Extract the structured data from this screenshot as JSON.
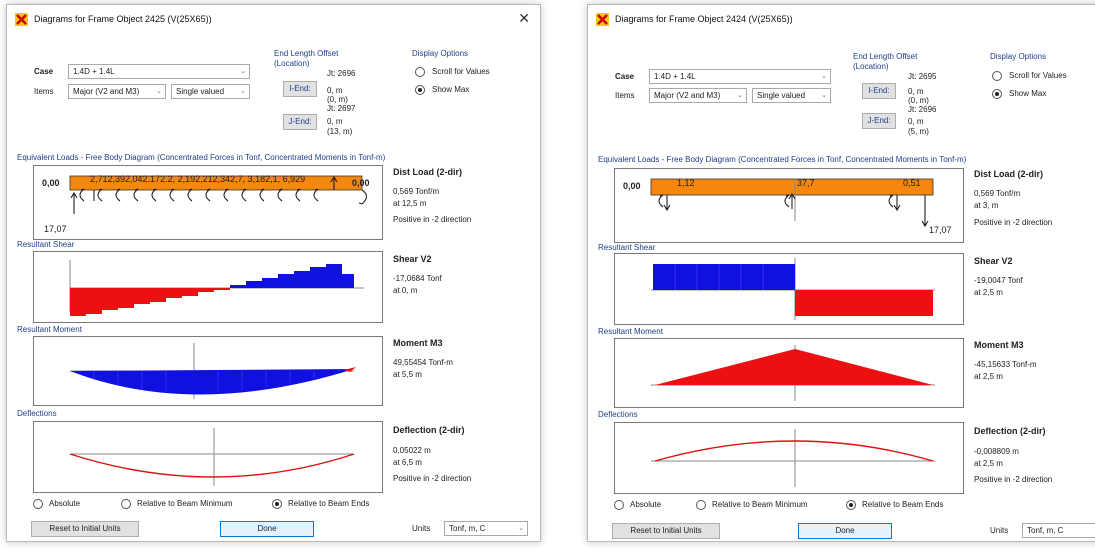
{
  "windows": [
    {
      "title": "Diagrams for Frame Object 2425  (V(25X65))",
      "case_label": "Case",
      "case_value": "1.4D + 1.4L",
      "items_label": "Items",
      "items_value": "Major (V2 and M3)",
      "valued_value": "Single valued",
      "end_length_offset_label": "End Length Offset",
      "location_label": "(Location)",
      "i_end_label": "I-End:",
      "j_end_label": "J-End:",
      "jt_i": "Jt: 2696",
      "i_off": "0, m",
      "i_loc": "(0, m)",
      "jt_j": "Jt: 2697",
      "j_off": "0, m",
      "j_loc": "(13, m)",
      "display_options_label": "Display Options",
      "scroll_label": "Scroll for Values",
      "show_max_label": "Show Max",
      "fbd_header": "Equivalent Loads - Free Body Diagram  (Concentrated Forces in Tonf, Concentrated Moments in Tonf-m)",
      "fbd_left_label": "0,00",
      "fbd_right_label": "0,00",
      "fbd_top_values": "2,712,392,042.172.2, 2,192,212,342,7, 3,182,1, 6,929",
      "fbd_reaction": "17,07",
      "dist_title": "Dist Load (2-dir)",
      "dist_value": "0,569 Tonf/m",
      "dist_at": "at 12,5 m",
      "dist_note": "Positive in -2 direction",
      "shear_section": "Resultant Shear",
      "shear_title": "Shear V2",
      "shear_value": "-17,0684 Tonf",
      "shear_at": "at 0, m",
      "moment_section": "Resultant Moment",
      "moment_title": "Moment M3",
      "moment_value": "49,55454 Tonf-m",
      "moment_at": "at 5,5 m",
      "defl_section": "Deflections",
      "defl_title": "Deflection (2-dir)",
      "defl_value": "0,05022 m",
      "defl_at": "at 6,5 m",
      "defl_note": "Positive in -2 direction",
      "absolute_label": "Absolute",
      "rel_min_label": "Relative to Beam Minimum",
      "rel_ends_label": "Relative to Beam Ends",
      "reset_label": "Reset to Initial Units",
      "done_label": "Done",
      "units_label": "Units",
      "units_value": "Tonf, m, C"
    },
    {
      "title": "Diagrams for Frame Object 2424  (V(25X65))",
      "case_label": "Case",
      "case_value": "1.4D + 1.4L",
      "items_label": "Items",
      "items_value": "Major (V2 and M3)",
      "valued_value": "Single valued",
      "end_length_offset_label": "End Length Offset",
      "location_label": "(Location)",
      "i_end_label": "I-End:",
      "j_end_label": "J-End:",
      "jt_i": "Jt: 2695",
      "i_off": "0, m",
      "i_loc": "(0, m)",
      "jt_j": "Jt: 2696",
      "j_off": "0, m",
      "j_loc": "(5, m)",
      "display_options_label": "Display Options",
      "scroll_label": "Scroll for Values",
      "show_max_label": "Show Max",
      "fbd_header": "Equivalent Loads - Free Body Diagram  (Concentrated Forces in Tonf, Concentrated Moments in Tonf-m)",
      "fbd_left_label": "0,00",
      "fbd_val1": "1,12",
      "fbd_val2": "37,7",
      "fbd_val3": "0,51",
      "fbd_reaction": "17,07",
      "dist_title": "Dist Load (2-dir)",
      "dist_value": "0,569 Tonf/m",
      "dist_at": "at 3, m",
      "dist_note": "Positive in -2 direction",
      "shear_section": "Resultant Shear",
      "shear_title": "Shear V2",
      "shear_value": "-19,0047 Tonf",
      "shear_at": "at 2,5 m",
      "moment_section": "Resultant Moment",
      "moment_title": "Moment M3",
      "moment_value": "-45,15633 Tonf-m",
      "moment_at": "at 2,5 m",
      "defl_section": "Deflections",
      "defl_title": "Deflection (2-dir)",
      "defl_value": "-0,008809 m",
      "defl_at": "at 2,5 m",
      "defl_note": "Positive in -2 direction",
      "absolute_label": "Absolute",
      "rel_min_label": "Relative to Beam Minimum",
      "rel_ends_label": "Relative to Beam Ends",
      "reset_label": "Reset to Initial Units",
      "done_label": "Done",
      "units_label": "Units",
      "units_value": "Tonf, m, C"
    }
  ],
  "colors": {
    "load_fill": "#f5870f",
    "positive_fill": "#1010e0",
    "negative_fill": "#ee1010",
    "deflection_line": "#e01010",
    "accent_text": "#1f3f8a"
  }
}
